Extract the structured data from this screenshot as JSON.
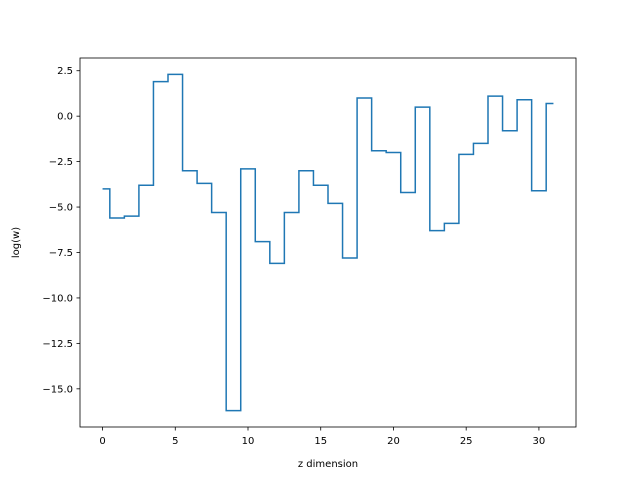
{
  "chart_data": {
    "type": "line",
    "drawstyle": "steps-mid",
    "title": "",
    "xlabel": "z dimension",
    "ylabel": "log(w)",
    "xlim": [
      -1.55,
      32.55
    ],
    "ylim": [
      -17.1,
      3.2
    ],
    "xticks": [
      0,
      5,
      10,
      15,
      20,
      25,
      30
    ],
    "yticks": [
      2.5,
      0.0,
      -2.5,
      -5.0,
      -7.5,
      -10.0,
      -12.5,
      -15.0
    ],
    "ytick_labels": [
      "2.5",
      "0.0",
      "−2.5",
      "−5.0",
      "−7.5",
      "−10.0",
      "−12.5",
      "−15.0"
    ],
    "grid": false,
    "legend": "none",
    "series": [
      {
        "color": "#1f77b4",
        "x": [
          0,
          1,
          2,
          3,
          4,
          5,
          6,
          7,
          8,
          9,
          10,
          11,
          12,
          13,
          14,
          15,
          16,
          17,
          18,
          19,
          20,
          21,
          22,
          23,
          24,
          25,
          26,
          27,
          28,
          29,
          30,
          31
        ],
        "y": [
          -4.0,
          -5.6,
          -5.5,
          -3.8,
          1.9,
          2.3,
          -3.0,
          -3.7,
          -5.3,
          -16.2,
          -2.9,
          -6.9,
          -8.1,
          -5.3,
          -3.0,
          -3.8,
          -4.8,
          -7.8,
          1.0,
          -1.9,
          -2.0,
          -4.2,
          0.5,
          -6.3,
          -5.9,
          -2.1,
          -1.5,
          1.1,
          -0.8,
          0.9,
          -4.1,
          0.7
        ]
      }
    ]
  }
}
